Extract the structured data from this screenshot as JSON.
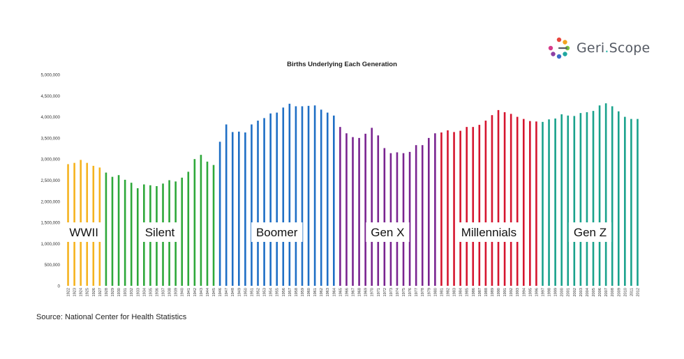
{
  "brand": {
    "name_part1": "Geri",
    "name_dot": ".",
    "name_part2": "Scope",
    "logo_colors": [
      "#e8453c",
      "#f4a21e",
      "#7ac143",
      "#1fa7a0",
      "#3b6cc9",
      "#8e3fa4",
      "#d63a8a"
    ]
  },
  "source": "Source: National Center for Health Statistics",
  "chart_data": {
    "type": "bar",
    "title": "Births Underlying Each Generation",
    "xlabel": "",
    "ylabel": "",
    "ylim": [
      0,
      5000000
    ],
    "yticks": [
      0,
      500000,
      1000000,
      1500000,
      2000000,
      2500000,
      3000000,
      3500000,
      4000000,
      4500000,
      5000000
    ],
    "ytick_labels": [
      "0",
      "500,000",
      "1,000,000",
      "1,500,000",
      "2,000,000",
      "2,500,000",
      "3,000,000",
      "3,500,000",
      "4,000,000",
      "4,500,000",
      "5,000,000"
    ],
    "grid": false,
    "categories": [
      "1922",
      "1923",
      "1924",
      "1925",
      "1926",
      "1927",
      "1928",
      "1929",
      "1930",
      "1931",
      "1932",
      "1933",
      "1934",
      "1935",
      "1936",
      "1937",
      "1938",
      "1939",
      "1940",
      "1941",
      "1942",
      "1943",
      "1944",
      "1945",
      "1946",
      "1947",
      "1948",
      "1949",
      "1950",
      "1951",
      "1952",
      "1953",
      "1954",
      "1955",
      "1956",
      "1957",
      "1958",
      "1959",
      "1960",
      "1961",
      "1962",
      "1963",
      "1964",
      "1965",
      "1966",
      "1967",
      "1968",
      "1969",
      "1970",
      "1971",
      "1972",
      "1973",
      "1974",
      "1975",
      "1976",
      "1977",
      "1978",
      "1979",
      "1980",
      "1981",
      "1982",
      "1983",
      "1984",
      "1985",
      "1986",
      "1987",
      "1988",
      "1989",
      "1990",
      "1991",
      "1992",
      "1993",
      "1994",
      "1995",
      "1996",
      "1997",
      "1998",
      "1999",
      "2000",
      "2001",
      "2002",
      "2003",
      "2004",
      "2005",
      "2006",
      "2007",
      "2008",
      "2009",
      "2010",
      "2011",
      "2012"
    ],
    "values": [
      2880000,
      2910000,
      2980000,
      2910000,
      2840000,
      2800000,
      2680000,
      2580000,
      2620000,
      2510000,
      2440000,
      2310000,
      2400000,
      2380000,
      2360000,
      2420000,
      2500000,
      2470000,
      2560000,
      2700000,
      3000000,
      3100000,
      2940000,
      2860000,
      3410000,
      3820000,
      3640000,
      3650000,
      3630000,
      3820000,
      3910000,
      3970000,
      4080000,
      4100000,
      4220000,
      4310000,
      4250000,
      4250000,
      4260000,
      4270000,
      4170000,
      4100000,
      4030000,
      3760000,
      3610000,
      3520000,
      3500000,
      3600000,
      3740000,
      3560000,
      3260000,
      3140000,
      3160000,
      3140000,
      3170000,
      3330000,
      3330000,
      3500000,
      3610000,
      3630000,
      3680000,
      3640000,
      3670000,
      3760000,
      3760000,
      3810000,
      3910000,
      4040000,
      4160000,
      4110000,
      4070000,
      4000000,
      3950000,
      3900000,
      3890000,
      3880000,
      3940000,
      3960000,
      4060000,
      4030000,
      4020000,
      4090000,
      4110000,
      4140000,
      4270000,
      4320000,
      4250000,
      4130000,
      4000000,
      3950000,
      3950000
    ],
    "series": [
      {
        "name": "WWII",
        "color": "#f5b31f",
        "start": "1922",
        "end": "1927"
      },
      {
        "name": "Silent",
        "color": "#2ea83a",
        "start": "1928",
        "end": "1945"
      },
      {
        "name": "Boomer",
        "color": "#1f6fc5",
        "start": "1946",
        "end": "1964"
      },
      {
        "name": "Gen X",
        "color": "#7a2590",
        "start": "1965",
        "end": "1980"
      },
      {
        "name": "Millennials",
        "color": "#d5152f",
        "start": "1981",
        "end": "1996"
      },
      {
        "name": "Gen Z",
        "color": "#1aa28c",
        "start": "1997",
        "end": "2012"
      }
    ]
  }
}
